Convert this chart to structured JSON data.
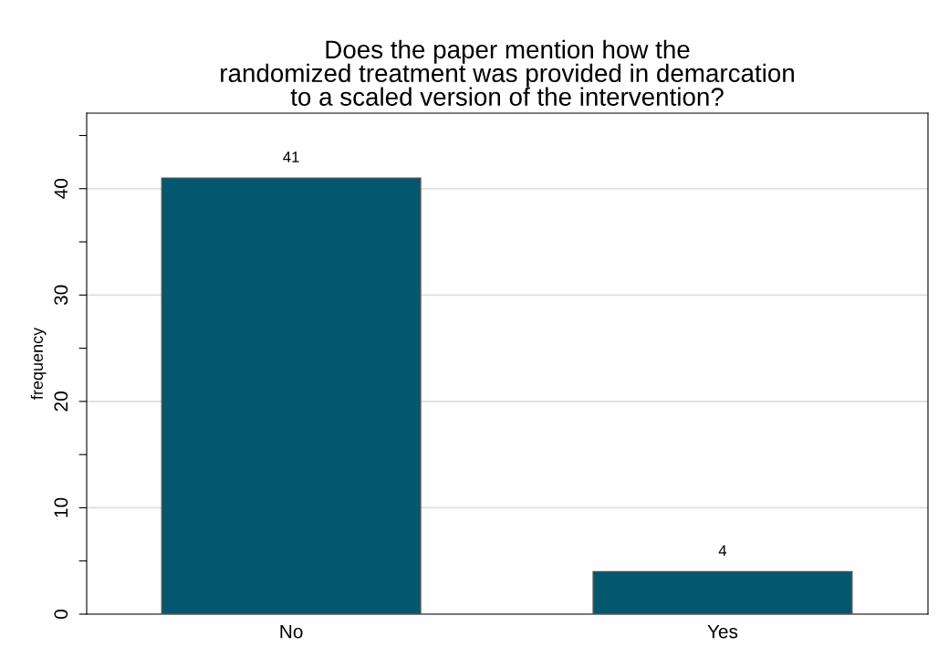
{
  "chart_data": {
    "type": "bar",
    "title": "Does the paper mention how the\nrandomized treatment was provided in demarcation\nto a scaled version of the intervention?",
    "ylabel": "frequency",
    "categories": [
      "No",
      "Yes"
    ],
    "values": [
      41,
      4
    ],
    "color": "#03586f",
    "data_labels": true,
    "ylim": [
      0,
      47.1
    ],
    "yticks": [
      0,
      {
        "value": 5,
        "label": null
      },
      10,
      {
        "value": 15,
        "label": null
      },
      20,
      {
        "value": 25,
        "label": null
      },
      30,
      {
        "value": 35,
        "label": null
      },
      40,
      {
        "value": 45,
        "label": null
      }
    ],
    "grid": "y"
  }
}
